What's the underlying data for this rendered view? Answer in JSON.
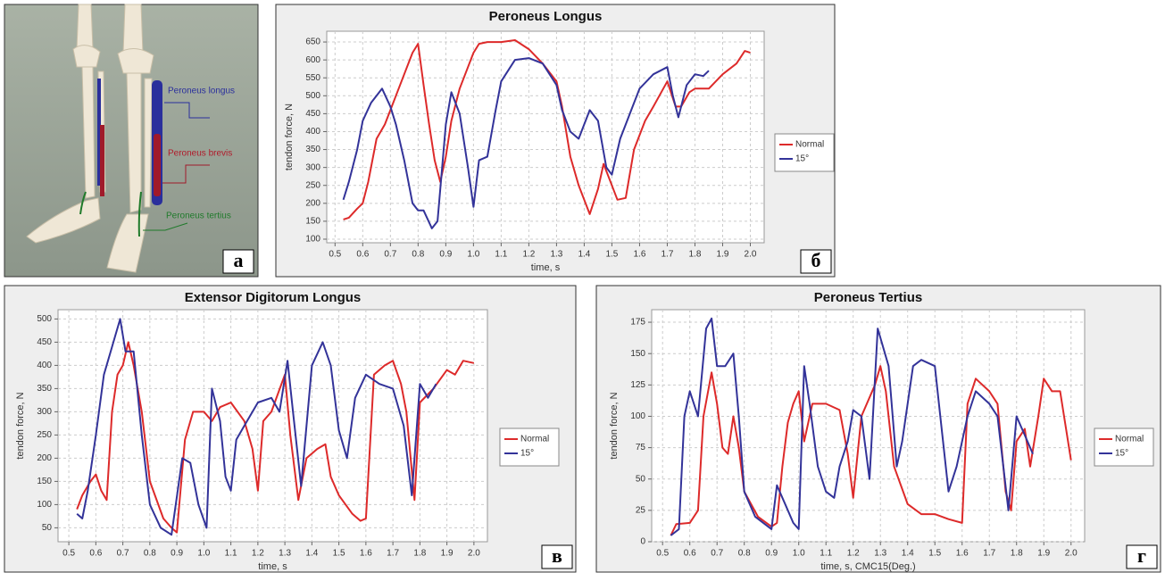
{
  "anatomy": {
    "labels": [
      "Peroneus longus",
      "Peroneus brevis",
      "Peroneus tertius"
    ]
  },
  "panel_letters": [
    "а",
    "б",
    "в",
    "г"
  ],
  "chart_data": [
    {
      "type": "line",
      "title": "Peroneus Longus",
      "xlabel": "time, s",
      "ylabel": "tendon force, N",
      "xlim": [
        0.47,
        2.05
      ],
      "ylim": [
        90,
        680
      ],
      "xticks": [
        0.5,
        0.6,
        0.7,
        0.8,
        0.9,
        {
          "value": 1,
          "label": "1.0"
        },
        1.1,
        1.2,
        1.3,
        1.4,
        1.5,
        1.6,
        1.7,
        1.8,
        1.9,
        {
          "value": 2,
          "label": "2.0"
        }
      ],
      "yticks": [
        100,
        150,
        200,
        250,
        300,
        350,
        400,
        450,
        500,
        550,
        600,
        650
      ],
      "grid": true,
      "legend": "right",
      "series": [
        {
          "name": "Normal",
          "color": "#dd2a2a",
          "x": [
            0.53,
            0.55,
            0.58,
            0.6,
            0.62,
            0.65,
            0.68,
            0.7,
            0.72,
            0.75,
            0.78,
            0.8,
            0.82,
            0.84,
            0.86,
            0.88,
            0.9,
            0.92,
            0.95,
            0.98,
            1.0,
            1.02,
            1.05,
            1.1,
            1.15,
            1.2,
            1.25,
            1.3,
            1.32,
            1.35,
            1.38,
            1.42,
            1.45,
            1.47,
            1.5,
            1.52,
            1.55,
            1.58,
            1.62,
            1.65,
            1.7,
            1.73,
            1.75,
            1.78,
            1.8,
            1.85,
            1.9,
            1.95,
            1.98,
            2.0
          ],
          "values": [
            155,
            160,
            185,
            200,
            260,
            380,
            420,
            460,
            500,
            560,
            620,
            645,
            530,
            420,
            320,
            260,
            330,
            430,
            520,
            580,
            620,
            645,
            650,
            650,
            655,
            630,
            590,
            540,
            470,
            330,
            250,
            170,
            240,
            310,
            250,
            210,
            215,
            350,
            430,
            470,
            540,
            470,
            470,
            510,
            520,
            520,
            560,
            590,
            625,
            620
          ]
        },
        {
          "name": "15°",
          "color": "#333399",
          "x": [
            0.53,
            0.55,
            0.58,
            0.6,
            0.63,
            0.65,
            0.67,
            0.7,
            0.72,
            0.75,
            0.78,
            0.8,
            0.82,
            0.85,
            0.87,
            0.9,
            0.92,
            0.95,
            0.98,
            1.0,
            1.02,
            1.05,
            1.08,
            1.1,
            1.15,
            1.2,
            1.25,
            1.3,
            1.32,
            1.35,
            1.38,
            1.4,
            1.42,
            1.45,
            1.48,
            1.5,
            1.53,
            1.57,
            1.6,
            1.65,
            1.7,
            1.72,
            1.74,
            1.77,
            1.8,
            1.83,
            1.85
          ],
          "values": [
            210,
            260,
            350,
            430,
            480,
            500,
            520,
            470,
            420,
            320,
            200,
            180,
            180,
            130,
            150,
            420,
            510,
            450,
            300,
            190,
            320,
            330,
            460,
            540,
            600,
            605,
            590,
            530,
            460,
            400,
            380,
            420,
            460,
            430,
            300,
            280,
            380,
            460,
            520,
            560,
            580,
            500,
            440,
            530,
            560,
            555,
            570
          ]
        }
      ]
    },
    {
      "type": "line",
      "title": "Extensor Digitorum Longus",
      "xlabel": "time, s",
      "ylabel": "tendon force, N",
      "xlim": [
        0.46,
        2.05
      ],
      "ylim": [
        20,
        520
      ],
      "xticks": [
        0.5,
        0.6,
        0.7,
        0.8,
        0.9,
        {
          "value": 1,
          "label": "1.0"
        },
        1.1,
        1.2,
        1.3,
        1.4,
        1.5,
        1.6,
        1.7,
        1.8,
        1.9,
        {
          "value": 2,
          "label": "2.0"
        }
      ],
      "yticks": [
        50,
        100,
        150,
        200,
        250,
        300,
        350,
        400,
        450,
        500
      ],
      "grid": true,
      "legend": "right",
      "series": [
        {
          "name": "Normal",
          "color": "#dd2a2a",
          "x": [
            0.53,
            0.55,
            0.58,
            0.6,
            0.62,
            0.64,
            0.66,
            0.68,
            0.7,
            0.72,
            0.74,
            0.77,
            0.8,
            0.85,
            0.88,
            0.9,
            0.93,
            0.96,
            1.0,
            1.03,
            1.06,
            1.1,
            1.15,
            1.18,
            1.2,
            1.22,
            1.25,
            1.3,
            1.32,
            1.35,
            1.38,
            1.42,
            1.45,
            1.47,
            1.5,
            1.55,
            1.58,
            1.6,
            1.63,
            1.67,
            1.7,
            1.73,
            1.75,
            1.78,
            1.8,
            1.85,
            1.9,
            1.93,
            1.96,
            2.0
          ],
          "values": [
            90,
            120,
            150,
            165,
            130,
            110,
            300,
            380,
            400,
            450,
            400,
            300,
            150,
            70,
            50,
            40,
            240,
            300,
            300,
            280,
            310,
            320,
            280,
            220,
            130,
            280,
            300,
            380,
            250,
            110,
            200,
            220,
            230,
            160,
            120,
            80,
            65,
            70,
            380,
            400,
            410,
            360,
            300,
            110,
            320,
            350,
            390,
            380,
            410,
            405
          ]
        },
        {
          "name": "15°",
          "color": "#333399",
          "x": [
            0.53,
            0.55,
            0.57,
            0.6,
            0.63,
            0.66,
            0.69,
            0.71,
            0.74,
            0.77,
            0.8,
            0.84,
            0.88,
            0.92,
            0.95,
            0.98,
            1.01,
            1.03,
            1.06,
            1.08,
            1.1,
            1.12,
            1.15,
            1.2,
            1.25,
            1.28,
            1.31,
            1.33,
            1.36,
            1.4,
            1.44,
            1.47,
            1.5,
            1.53,
            1.56,
            1.6,
            1.65,
            1.7,
            1.74,
            1.77,
            1.8,
            1.83,
            1.86
          ],
          "values": [
            80,
            70,
            130,
            250,
            380,
            440,
            500,
            430,
            430,
            250,
            100,
            50,
            35,
            200,
            190,
            100,
            50,
            350,
            280,
            160,
            130,
            240,
            270,
            320,
            330,
            300,
            410,
            300,
            140,
            400,
            450,
            400,
            260,
            200,
            330,
            380,
            360,
            350,
            270,
            120,
            360,
            330,
            360
          ]
        }
      ]
    },
    {
      "type": "line",
      "title": "Peroneus Tertius",
      "xlabel": "time, s, CMC15(Deg.)",
      "ylabel": "tendon force, N",
      "xlim": [
        0.46,
        2.05
      ],
      "ylim": [
        0,
        185
      ],
      "xticks": [
        0.5,
        0.6,
        0.7,
        0.8,
        0.9,
        {
          "value": 1,
          "label": "1.0"
        },
        1.1,
        1.2,
        1.3,
        1.4,
        1.5,
        1.6,
        1.7,
        1.8,
        1.9,
        {
          "value": 2,
          "label": "2.0"
        }
      ],
      "yticks": [
        0,
        25,
        50,
        75,
        100,
        125,
        150,
        175
      ],
      "grid": true,
      "legend": "right",
      "series": [
        {
          "name": "Normal",
          "color": "#dd2a2a",
          "x": [
            0.53,
            0.55,
            0.6,
            0.63,
            0.65,
            0.68,
            0.7,
            0.72,
            0.74,
            0.76,
            0.78,
            0.8,
            0.85,
            0.9,
            0.92,
            0.94,
            0.96,
            0.98,
            1.0,
            1.02,
            1.05,
            1.1,
            1.15,
            1.18,
            1.2,
            1.23,
            1.28,
            1.3,
            1.32,
            1.35,
            1.4,
            1.45,
            1.5,
            1.55,
            1.6,
            1.62,
            1.65,
            1.7,
            1.73,
            1.76,
            1.78,
            1.8,
            1.83,
            1.85,
            1.88,
            1.9,
            1.93,
            1.96,
            2.0
          ],
          "values": [
            5,
            14,
            15,
            25,
            100,
            135,
            110,
            75,
            70,
            100,
            75,
            40,
            20,
            12,
            15,
            60,
            95,
            110,
            120,
            80,
            110,
            110,
            105,
            70,
            35,
            100,
            125,
            140,
            120,
            60,
            30,
            22,
            22,
            18,
            15,
            110,
            130,
            120,
            110,
            40,
            25,
            80,
            90,
            60,
            100,
            130,
            120,
            120,
            65
          ]
        },
        {
          "name": "15°",
          "color": "#333399",
          "x": [
            0.53,
            0.56,
            0.58,
            0.6,
            0.63,
            0.66,
            0.68,
            0.7,
            0.73,
            0.76,
            0.78,
            0.8,
            0.84,
            0.9,
            0.92,
            0.95,
            0.98,
            1.0,
            1.02,
            1.04,
            1.07,
            1.1,
            1.13,
            1.15,
            1.18,
            1.2,
            1.23,
            1.26,
            1.29,
            1.31,
            1.33,
            1.36,
            1.38,
            1.42,
            1.45,
            1.5,
            1.52,
            1.55,
            1.58,
            1.62,
            1.65,
            1.7,
            1.73,
            1.77,
            1.8,
            1.83,
            1.86
          ],
          "values": [
            5,
            10,
            100,
            120,
            100,
            170,
            178,
            140,
            140,
            150,
            100,
            40,
            20,
            10,
            45,
            30,
            15,
            10,
            140,
            110,
            60,
            40,
            35,
            60,
            80,
            105,
            100,
            50,
            170,
            155,
            140,
            60,
            80,
            140,
            145,
            140,
            100,
            40,
            60,
            100,
            120,
            110,
            100,
            25,
            100,
            85,
            70
          ]
        }
      ]
    }
  ]
}
